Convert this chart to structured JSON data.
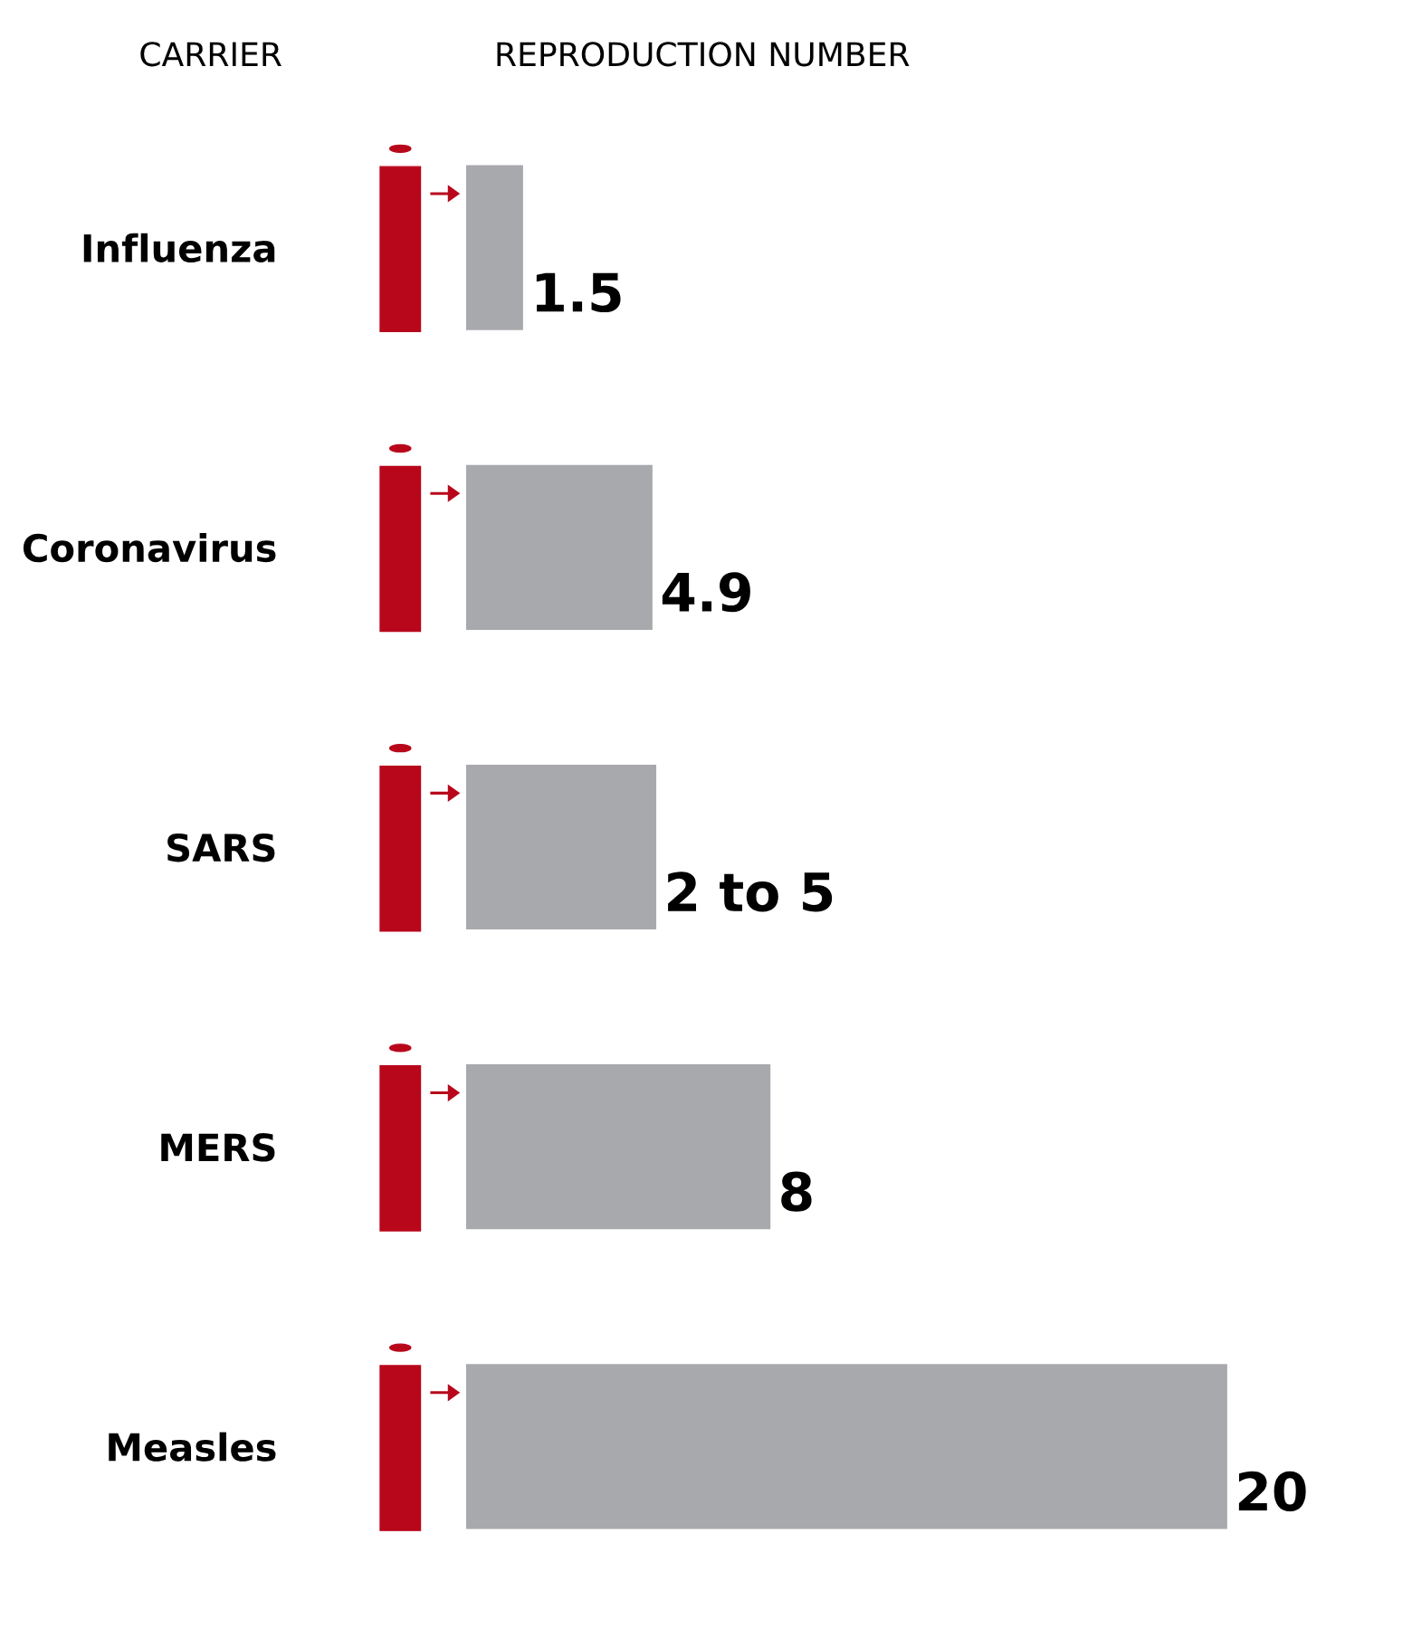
{
  "chart_data": {
    "type": "bar",
    "orientation": "horizontal",
    "categories": [
      "Influenza",
      "Coronavirus",
      "SARS",
      "MERS",
      "Measles"
    ],
    "values": [
      1.5,
      4.9,
      5,
      8,
      20
    ],
    "value_labels": [
      "1.5",
      "4.9",
      "2 to 5",
      "8",
      "20"
    ],
    "color": "#a7a9ac",
    "annotations": [
      "CARRIER",
      "REPRODUCTION NUMBER"
    ],
    "grid": false,
    "legend": false
  }
}
